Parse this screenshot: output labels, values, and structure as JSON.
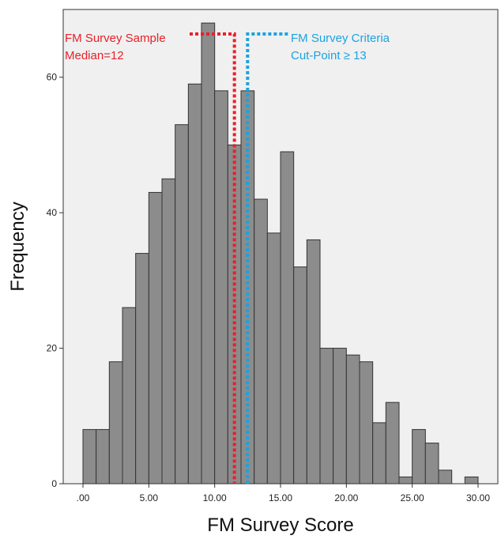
{
  "chart_data": {
    "type": "bar",
    "title": "",
    "xlabel": "FM Survey Score",
    "ylabel": "Frequency",
    "bin_width": 1,
    "xlim": [
      -1.5,
      31.5
    ],
    "ylim": [
      0,
      70
    ],
    "x_ticks": [
      0,
      5,
      10,
      15,
      20,
      25,
      30
    ],
    "x_tick_labels": [
      ".00",
      "5.00",
      "10.00",
      "15.00",
      "20.00",
      "25.00",
      "30.00"
    ],
    "y_ticks": [
      0,
      20,
      40,
      60
    ],
    "y_tick_labels": [
      "0",
      "20",
      "40",
      "60"
    ],
    "grid": false,
    "bar_color": "#8c8c8c",
    "bar_edge_color": "#333333",
    "plot_background": "#f0f0f0",
    "bins": [
      0.5,
      1.5,
      2.5,
      3.5,
      4.5,
      5.5,
      6.5,
      7.5,
      8.5,
      9.5,
      10.5,
      11.5,
      12.5,
      13.5,
      14.5,
      15.5,
      16.5,
      17.5,
      18.5,
      19.5,
      20.5,
      21.5,
      22.5,
      23.5,
      24.5,
      25.5,
      26.5,
      27.5,
      28.5,
      29.5
    ],
    "values": [
      8,
      8,
      18,
      26,
      34,
      43,
      45,
      53,
      59,
      68,
      58,
      50,
      58,
      42,
      37,
      49,
      32,
      36,
      20,
      20,
      19,
      18,
      9,
      12,
      1,
      8,
      6,
      2,
      0,
      1
    ],
    "annotations": [
      {
        "lines": [
          "FM Survey Sample",
          "Median=12"
        ],
        "color": "#e8202a",
        "x_value": 11.5,
        "line_style": "dotted"
      },
      {
        "lines": [
          "FM Survey Criteria",
          "Cut-Point ≥ 13"
        ],
        "color": "#1aa3e0",
        "x_value": 12.5,
        "line_style": "dotted"
      }
    ]
  }
}
